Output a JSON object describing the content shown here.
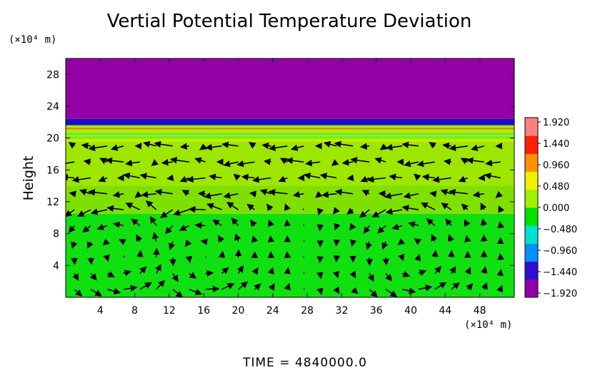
{
  "chart_data": {
    "type": "heatmap",
    "title": "Vertial Potential Temperature Deviation",
    "ylabel": "Height",
    "y_unit": "(×10⁴ m)",
    "x_unit": "(×10⁴ m)",
    "xlim": [
      0,
      52
    ],
    "ylim": [
      0,
      30
    ],
    "x_ticks": [
      "4",
      "8",
      "12",
      "16",
      "20",
      "24",
      "28",
      "32",
      "36",
      "40",
      "44",
      "48"
    ],
    "y_ticks": [
      "4",
      "8",
      "12",
      "16",
      "20",
      "24",
      "28"
    ],
    "colorbar": {
      "range": [
        -1.92,
        1.92
      ],
      "tick_labels": [
        "1.920",
        "1.440",
        "0.960",
        "0.480",
        "0.000",
        "−0.480",
        "−0.960",
        "−1.440",
        "−1.920"
      ],
      "colormap": [
        "#9400a6",
        "#3010d0",
        "#0090ff",
        "#00e0d0",
        "#00e000",
        "#a0f000",
        "#f0f000",
        "#ff9000",
        "#ff2000",
        "#ff8080"
      ]
    },
    "regions": [
      {
        "y_range": [
          22.4,
          30
        ],
        "value": -1.92,
        "color": "#9400a6"
      },
      {
        "y_range": [
          21.6,
          22.4
        ],
        "value": -1.6,
        "color": "#1a0fc0"
      },
      {
        "y_range": [
          19.5,
          21.6
        ],
        "value": 0.5,
        "color": "#9ff000"
      },
      {
        "y_range": [
          10.5,
          19.5
        ],
        "value": 0.45,
        "color": "#7fe000"
      },
      {
        "y_range": [
          0,
          10.5
        ],
        "value": 0.05,
        "color": "#10e010"
      }
    ],
    "grid": false,
    "legend": "colorbar-right",
    "overlay": "wind vectors"
  },
  "footer": {
    "time_label": "TIME  =  4840000.0"
  }
}
